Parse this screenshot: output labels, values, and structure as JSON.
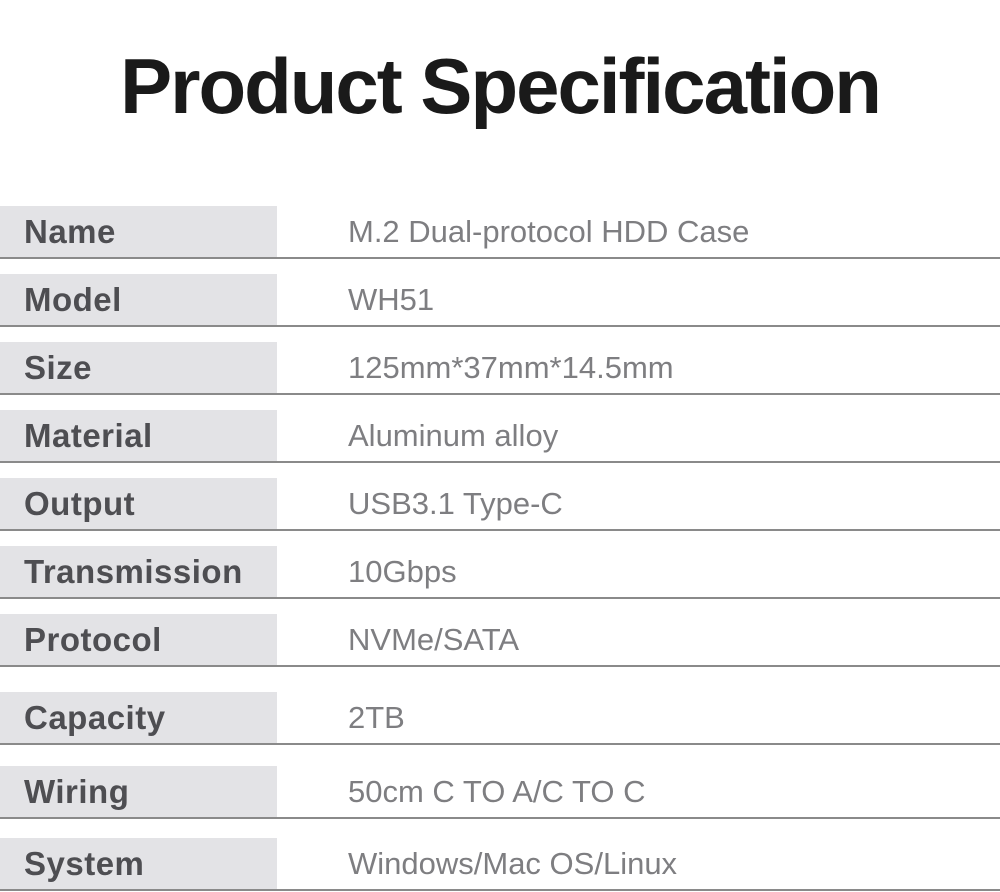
{
  "page": {
    "title": "Product Specification"
  },
  "specs": [
    {
      "label": "Name",
      "value": "M.2 Dual-protocol HDD Case"
    },
    {
      "label": "Model",
      "value": "WH51"
    },
    {
      "label": "Size",
      "value": "125mm*37mm*14.5mm"
    },
    {
      "label": "Material",
      "value": "Aluminum alloy"
    },
    {
      "label": "Output",
      "value": "USB3.1 Type-C"
    },
    {
      "label": "Transmission",
      "value": "10Gbps"
    },
    {
      "label": "Protocol",
      "value": "NVMe/SATA"
    },
    {
      "label": "Capacity",
      "value": "2TB"
    },
    {
      "label": "Wiring",
      "value": "50cm C TO A/C TO C"
    },
    {
      "label": "System",
      "value": "Windows/Mac OS/Linux"
    }
  ],
  "colors": {
    "page_bg": "#ffffff",
    "title_text": "#1a1a1a",
    "label_bg": "#e3e3e6",
    "label_text": "#4e4e52",
    "value_text": "#7e7e81",
    "divider": "#8a8a8a"
  }
}
